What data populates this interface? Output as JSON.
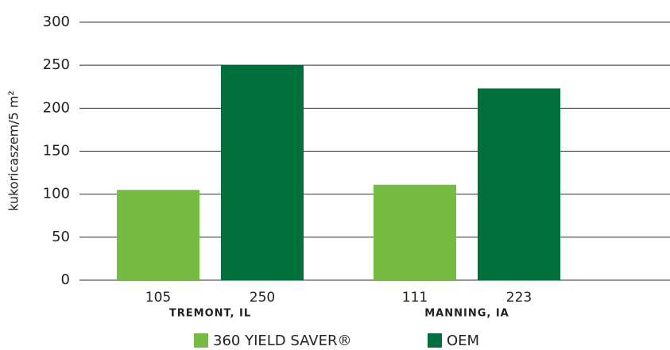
{
  "chart_data": {
    "type": "bar",
    "y_label": "kukoricaszem/5 m²",
    "categories": [
      "TREMONT, IL",
      "MANNING, IA"
    ],
    "series": [
      {
        "name": "360 YIELD SAVER®",
        "color": "#76bc43",
        "values": [
          105,
          111
        ]
      },
      {
        "name": "OEM",
        "color": "#006f3c",
        "values": [
          250,
          223
        ]
      }
    ],
    "ylim": [
      0,
      300
    ],
    "yticks": [
      0,
      50,
      100,
      150,
      200,
      250,
      300
    ],
    "grid": true
  }
}
